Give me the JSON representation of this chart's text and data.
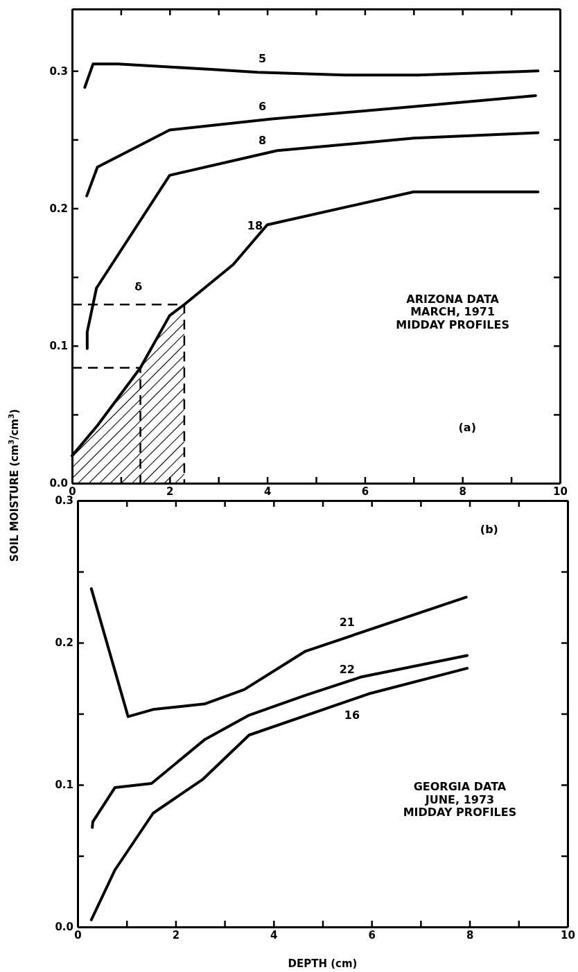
{
  "chart_data": [
    {
      "type": "line",
      "ylabel": "SOIL MOISTURE (cm$^{3}$/cm$^{3}$)",
      "xlim": [
        0,
        10
      ],
      "ylim": [
        0,
        0.345
      ],
      "xticks": [
        0,
        {
          "value": 1,
          "label": null
        },
        2,
        {
          "value": 3,
          "label": null
        },
        4,
        {
          "value": 5,
          "label": null
        },
        6,
        {
          "value": 7,
          "label": null
        },
        8,
        {
          "value": 9,
          "label": null
        },
        10
      ],
      "yticks": [
        {
          "value": 0,
          "label": "0.0"
        },
        {
          "value": 0.05,
          "label": null
        },
        0.1,
        {
          "value": 0.15,
          "label": null
        },
        0.2,
        {
          "value": 0.25,
          "label": null
        },
        0.3
      ],
      "series": [
        {
          "name": "5",
          "color": "#000000",
          "x": [
            0.26,
            0.43,
            0.94,
            2.9,
            3.8,
            5.6,
            7.1,
            9.55
          ],
          "values": [
            0.288,
            0.305,
            0.305,
            0.301,
            0.299,
            0.297,
            0.297,
            0.3
          ]
        },
        {
          "name": "6",
          "color": "#000000",
          "x": [
            0.3,
            0.52,
            2.0,
            4.1,
            7.0,
            9.5
          ],
          "values": [
            0.209,
            0.23,
            0.257,
            0.265,
            0.274,
            0.282
          ]
        },
        {
          "name": "8",
          "color": "#000000",
          "x": [
            0.31,
            0.31,
            0.5,
            2.0,
            4.2,
            7.0,
            9.55
          ],
          "values": [
            0.098,
            0.11,
            0.142,
            0.224,
            0.242,
            0.251,
            0.255
          ]
        },
        {
          "name": "18",
          "color": "#000000",
          "x": [
            0,
            0.52,
            1.4,
            2.0,
            2.3,
            3.3,
            4.0,
            7.0,
            9.55
          ],
          "values": [
            0.02,
            0.042,
            0.084,
            0.122,
            0.13,
            0.159,
            0.188,
            0.212,
            0.212
          ]
        },
        {
          "type": "area",
          "color": "#000000",
          "x": [
            0,
            0.52,
            1.4,
            2.0,
            2.3
          ],
          "values": [
            0.02,
            0.042,
            0.084,
            0.122,
            0.13
          ]
        }
      ],
      "annotations": [
        "ARIZONA DATA\nMARCH, 1971\nMIDDAY PROFILES",
        "(a)",
        "δ"
      ]
    },
    {
      "type": "line",
      "xlabel": "DEPTH (cm)",
      "xlim": [
        0,
        10
      ],
      "ylim": [
        0,
        0.3
      ],
      "xticks": [
        0,
        {
          "value": 1,
          "label": null
        },
        2,
        {
          "value": 3,
          "label": null
        },
        4,
        {
          "value": 5,
          "label": null
        },
        6,
        {
          "value": 7,
          "label": null
        },
        8,
        {
          "value": 9,
          "label": null
        },
        10
      ],
      "yticks": [
        {
          "value": 0,
          "label": "0.0"
        },
        {
          "value": 0.05,
          "label": null
        },
        0.1,
        {
          "value": 0.15,
          "label": null
        },
        0.2,
        {
          "value": 0.25,
          "label": null
        },
        0.3
      ],
      "series": [
        {
          "name": "21",
          "color": "#000000",
          "x": [
            0.28,
            1.03,
            1.54,
            2.6,
            3.4,
            4.65,
            7.93
          ],
          "values": [
            0.238,
            0.148,
            0.153,
            0.157,
            0.167,
            0.194,
            0.232
          ]
        },
        {
          "name": "22",
          "color": "#000000",
          "x": [
            0.3,
            0.31,
            0.76,
            1.51,
            2.6,
            3.5,
            4.65,
            5.8,
            7.95
          ],
          "values": [
            0.07,
            0.074,
            0.098,
            0.101,
            0.132,
            0.149,
            0.163,
            0.176,
            0.191
          ]
        },
        {
          "name": "16",
          "color": "#000000",
          "x": [
            0.28,
            0.76,
            1.54,
            2.56,
            3.5,
            5.94,
            7.95
          ],
          "values": [
            0.005,
            0.04,
            0.08,
            0.104,
            0.135,
            0.164,
            0.182
          ]
        }
      ],
      "annotations": [
        "(b)",
        "GEORGIA DATA\nJUNE, 1973\nMIDDAY PROFILES"
      ]
    }
  ]
}
